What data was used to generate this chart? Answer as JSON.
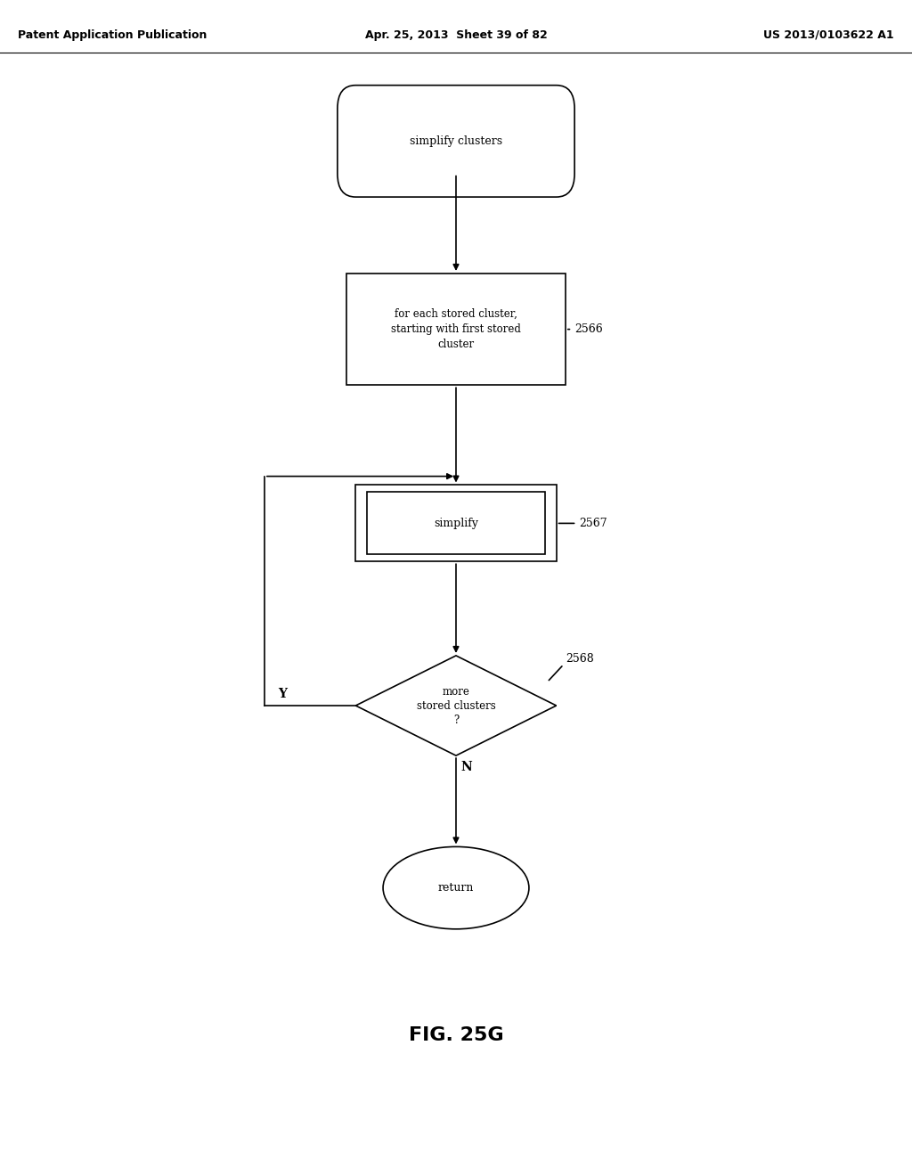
{
  "bg_color": "#ffffff",
  "header_left": "Patent Application Publication",
  "header_mid": "Apr. 25, 2013  Sheet 39 of 82",
  "header_right": "US 2013/0103622 A1",
  "figure_label": "FIG. 25G",
  "text_color": "#000000",
  "line_color": "#000000",
  "font_size_body": 9,
  "font_size_header": 8,
  "font_size_label": 10,
  "font_size_fig": 14
}
